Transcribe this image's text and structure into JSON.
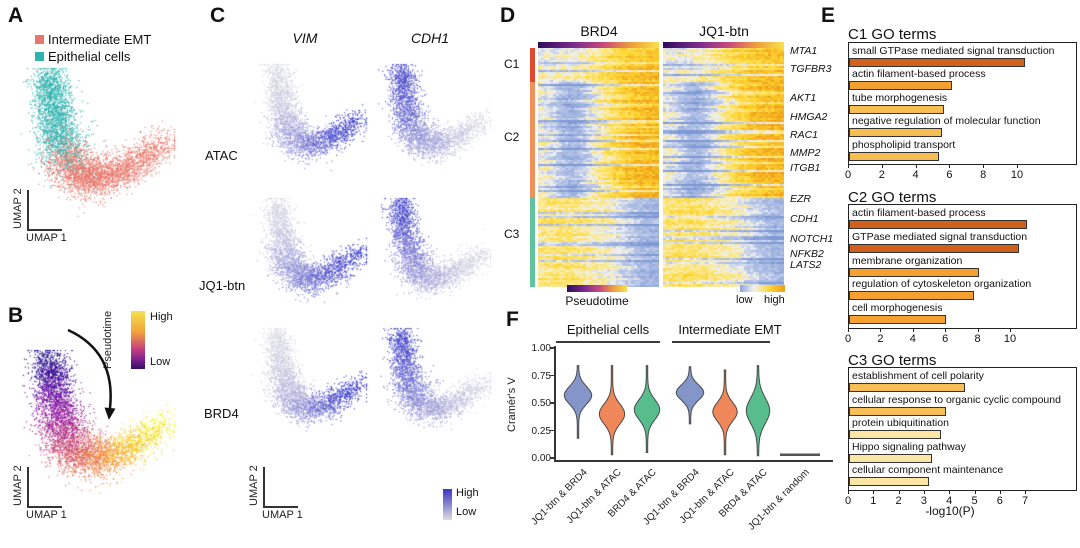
{
  "panel_a": {
    "label": "A",
    "legend": [
      {
        "label": "Intermediate EMT",
        "color": "#E8776B"
      },
      {
        "label": "Epithelial cells",
        "color": "#2FB3B0"
      }
    ],
    "x_axis": "UMAP 1",
    "y_axis": "UMAP 2"
  },
  "panel_b": {
    "label": "B",
    "colorbar": {
      "title": "Pseudotime",
      "high": "High",
      "low": "Low"
    },
    "x_axis": "UMAP 1",
    "y_axis": "UMAP 2"
  },
  "panel_c": {
    "label": "C",
    "columns": [
      "VIM",
      "CDH1"
    ],
    "rows": [
      "ATAC",
      "JQ1-btn",
      "BRD4"
    ],
    "colorbar": {
      "high": "High",
      "low": "Low"
    },
    "x_axis": "UMAP 1",
    "y_axis": "UMAP 2"
  },
  "panel_d": {
    "label": "D",
    "pseudotime_label": "Pseudotime",
    "scale_low": "low",
    "scale_high": "high"
  },
  "panel_e": {
    "label": "E",
    "xlabel": "-log10(P)"
  },
  "panel_f": {
    "label": "F"
  },
  "chart_data": {
    "umap_a": {
      "type": "scatter",
      "xlabel": "UMAP 1",
      "ylabel": "UMAP 2",
      "clusters": [
        {
          "name": "Intermediate EMT",
          "color": "#E8776B",
          "location": "lower-right arm of boomerang"
        },
        {
          "name": "Epithelial cells",
          "color": "#2FB3B0",
          "location": "upper-left arm of boomerang"
        }
      ]
    },
    "umap_b": {
      "type": "scatter",
      "xlabel": "UMAP 1",
      "ylabel": "UMAP 2",
      "colorbar": {
        "title": "Pseudotime",
        "low": "Low",
        "high": "High"
      },
      "pattern_notes": "pseudotime low (dark purple) at top of epithelial arm, high (yellow) at right tip of EMT arm; curved arrow indicates trajectory"
    },
    "feature_grid": {
      "type": "scatter",
      "genes": [
        "VIM",
        "CDH1"
      ],
      "assays": [
        "ATAC",
        "JQ1-btn",
        "BRD4"
      ],
      "colorbar": {
        "high": "High",
        "low": "Low"
      },
      "pattern_notes": "VIM signal high (blue) in lower EMT arm; CDH1 signal high (blue) in upper epithelial arm"
    },
    "heatmap": {
      "type": "heatmap",
      "titles": [
        "BRD4",
        "JQ1-btn"
      ],
      "x_axis": "Pseudotime",
      "clusters": [
        {
          "name": "C1",
          "color": "#E0492E",
          "genes": [
            "MTA1",
            "TGFBR3"
          ]
        },
        {
          "name": "C2",
          "color": "#F0915C",
          "genes": [
            "AKT1",
            "HMGA2",
            "RAC1",
            "MMP2",
            "ITGB1"
          ]
        },
        {
          "name": "C3",
          "color": "#5FC49E",
          "genes": [
            "EZR",
            "CDH1",
            "NOTCH1",
            "NFKB2",
            "LATS2"
          ]
        }
      ],
      "colorbar": {
        "low": "low",
        "high": "high"
      },
      "pattern_notes": "C1/C2 signal increases along pseudotime (yellow/orange at right); C3 signal decreases (blue at right)"
    },
    "go_charts": {
      "type": "bar",
      "xlabel": "-log10(P)",
      "charts": [
        {
          "title": "C1 GO terms",
          "terms": [
            {
              "label": "small GTPase mediated signal transduction",
              "value": 10.4,
              "color": "#d2611e"
            },
            {
              "label": "actin filament-based process",
              "value": 6.1,
              "color": "#f2a12f"
            },
            {
              "label": "tube morphogenesis",
              "value": 5.6,
              "color": "#f9be53"
            },
            {
              "label": "negative regulation of molecular function",
              "value": 5.5,
              "color": "#f9be53"
            },
            {
              "label": "phospholipid transport",
              "value": 5.3,
              "color": "#f9be53"
            }
          ],
          "xticks": [
            0,
            2,
            4,
            6,
            8,
            10
          ],
          "xmax": 13.6
        },
        {
          "title": "C2 GO terms",
          "terms": [
            {
              "label": "actin filament-based process",
              "value": 11.0,
              "color": "#d2611e"
            },
            {
              "label": "GTPase mediated signal transduction",
              "value": 10.5,
              "color": "#d2611e"
            },
            {
              "label": "membrane organization",
              "value": 8.0,
              "color": "#f5a02f"
            },
            {
              "label": "regulation of cytoskeleton organization",
              "value": 7.7,
              "color": "#f5a02f"
            },
            {
              "label": "cell morphogenesis",
              "value": 6.0,
              "color": "#f5a02f"
            }
          ],
          "xticks": [
            0,
            2,
            4,
            6,
            8,
            10
          ],
          "xmax": 14.0
        },
        {
          "title": "C3 GO terms",
          "terms": [
            {
              "label": "establishment of cell polarity",
              "value": 4.6,
              "color": "#f6bf55"
            },
            {
              "label": "cellular response to organic cyclic compound",
              "value": 3.85,
              "color": "#f6bf55"
            },
            {
              "label": "protein ubiquitination",
              "value": 3.65,
              "color": "#fbe6a6"
            },
            {
              "label": "Hippo signaling pathway",
              "value": 3.3,
              "color": "#fbe6a6"
            },
            {
              "label": "cellular component maintenance",
              "value": 3.15,
              "color": "#fbe6a6"
            }
          ],
          "xticks": [
            0,
            1,
            2,
            3,
            4,
            5,
            6,
            7
          ],
          "xmax": 9.0
        }
      ]
    },
    "violin": {
      "type": "violin",
      "ylabel": "Cramér's V",
      "ylim": [
        0,
        1
      ],
      "yticks": [
        "1.00",
        "0.75",
        "0.50",
        "0.25",
        "0.00"
      ],
      "group_labels": [
        "Epithelial cells",
        "Intermediate EMT"
      ],
      "violins": [
        {
          "label": "JQ1-btn & BRD4",
          "group": "Epithelial cells",
          "color": "#8496C9",
          "median": 0.57,
          "spread": 0.08,
          "min": 0.17,
          "max": 0.84,
          "width": 13
        },
        {
          "label": "JQ1-btn & ATAC",
          "group": "Epithelial cells",
          "color": "#F0875A",
          "median": 0.4,
          "spread": 0.09,
          "min": 0.02,
          "max": 0.84,
          "width": 12
        },
        {
          "label": "BRD4 & ATAC",
          "group": "Epithelial cells",
          "color": "#58BD8D",
          "median": 0.44,
          "spread": 0.09,
          "min": 0.04,
          "max": 0.84,
          "width": 12
        },
        {
          "label": "JQ1-btn & BRD4",
          "group": "Intermediate EMT",
          "color": "#8496C9",
          "median": 0.595,
          "spread": 0.07,
          "min": 0.3,
          "max": 0.83,
          "width": 13
        },
        {
          "label": "JQ1-btn & ATAC",
          "group": "Intermediate EMT",
          "color": "#F0875A",
          "median": 0.42,
          "spread": 0.085,
          "min": 0.02,
          "max": 0.8,
          "width": 11.5
        },
        {
          "label": "BRD4 & ATAC",
          "group": "Intermediate EMT",
          "color": "#58BD8D",
          "median": 0.43,
          "spread": 0.115,
          "min": 0.01,
          "max": 0.84,
          "width": 11
        },
        {
          "label": "JQ1-btn & random",
          "group": "",
          "color": "#555555",
          "flat_value": 0.03
        }
      ]
    }
  }
}
